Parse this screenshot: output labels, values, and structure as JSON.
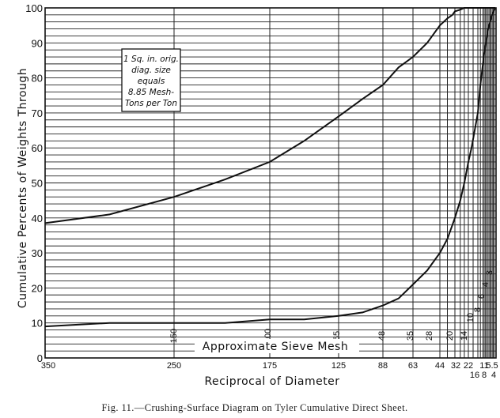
{
  "chart_data": {
    "type": "line",
    "caption": "Fig. 11.—Crushing-Surface Diagram on Tyler Cumulative Direct Sheet.",
    "ylabel": "Cumulative Percents of Weights Through",
    "xlabel": "Reciprocal of Diameter",
    "mesh_label": "Approximate Sieve Mesh",
    "ylim": [
      0,
      100
    ],
    "y_ticks": [
      "0",
      "10",
      "20",
      "30",
      "40",
      "50",
      "60",
      "70",
      "80",
      "90",
      "100"
    ],
    "x_ticks": [
      "350",
      "250",
      "175",
      "125",
      "88",
      "63",
      "44",
      "32",
      "22",
      "16",
      "11",
      "8",
      "5.5",
      "4"
    ],
    "x_scale": "reciprocal of diameter (nonlinear)",
    "mesh_ticks": [
      "150",
      "100",
      "65",
      "48",
      "35",
      "28",
      "20",
      "14",
      "10",
      "8",
      "6",
      "4",
      "3"
    ],
    "grid": true,
    "note_lines": [
      "1 Sq. in. orig.",
      "diag. size",
      "equals",
      "8.85 Mesh-",
      "Tons per Ton"
    ],
    "series": [
      {
        "x": [
          350,
          300,
          250,
          210,
          175,
          150,
          125,
          105,
          88,
          75,
          63,
          53,
          44,
          38,
          34,
          32,
          28,
          25,
          22,
          16,
          11,
          8,
          5.5,
          4
        ],
        "y": [
          38.5,
          41,
          46,
          51,
          56,
          62,
          69,
          74,
          78,
          83,
          86,
          90,
          95,
          97,
          98,
          99,
          99.5,
          100,
          100,
          100,
          100,
          100,
          100,
          100
        ]
      },
      {
        "x": [
          350,
          300,
          250,
          210,
          175,
          150,
          125,
          105,
          88,
          75,
          63,
          53,
          44,
          38,
          32,
          28,
          25,
          22,
          20,
          16,
          14,
          11,
          8,
          5.5,
          4
        ],
        "y": [
          9,
          10,
          10,
          10,
          11,
          11,
          12,
          13,
          15,
          17,
          21,
          25,
          30,
          34,
          40,
          45,
          50,
          56,
          60,
          70,
          78,
          87,
          94,
          98,
          100
        ]
      }
    ]
  }
}
